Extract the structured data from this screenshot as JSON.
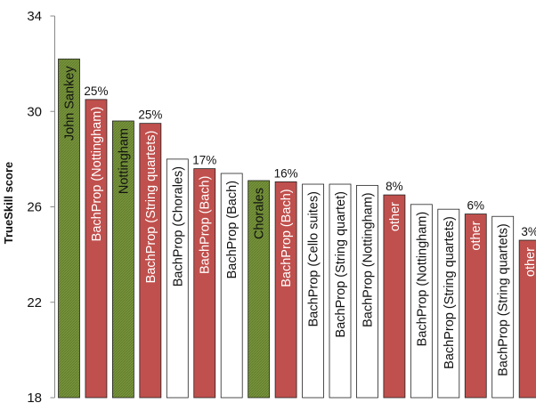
{
  "chart_data": {
    "type": "bar",
    "ylabel": "TrueSkill score",
    "ylim": [
      18,
      34
    ],
    "yticks": [
      18,
      22,
      26,
      30,
      34
    ],
    "grid": false,
    "legend": "none",
    "colors": {
      "green": "#77933c",
      "red": "#c0504d",
      "white": "#ffffff",
      "stroke": "#222222"
    },
    "bars": [
      {
        "label": "John Sankey",
        "value": 32.2,
        "color": "green",
        "pct": ""
      },
      {
        "label": "BachProp (Nottingham)",
        "value": 30.5,
        "color": "red",
        "pct": "25%"
      },
      {
        "label": "Nottingham",
        "value": 29.6,
        "color": "green",
        "pct": ""
      },
      {
        "label": "BachProp (String quartets)",
        "value": 29.5,
        "color": "red",
        "pct": "25%"
      },
      {
        "label": "BachProp (Chorales)",
        "value": 28.0,
        "color": "white",
        "pct": ""
      },
      {
        "label": "BachProp (Bach)",
        "value": 27.6,
        "color": "red",
        "pct": "17%"
      },
      {
        "label": "BachProp (Bach)",
        "value": 27.4,
        "color": "white",
        "pct": ""
      },
      {
        "label": "Chorales",
        "value": 27.1,
        "color": "green",
        "pct": ""
      },
      {
        "label": "BachProp (Bach)",
        "value": 27.05,
        "color": "red",
        "pct": "16%"
      },
      {
        "label": "BachProp (Cello suites)",
        "value": 26.95,
        "color": "white",
        "pct": ""
      },
      {
        "label": "BachProp (String quartet)",
        "value": 26.95,
        "color": "white",
        "pct": ""
      },
      {
        "label": "BachProp (Nottingham)",
        "value": 26.9,
        "color": "white",
        "pct": ""
      },
      {
        "label": "other",
        "value": 26.5,
        "color": "red",
        "pct": "8%"
      },
      {
        "label": "BachProp (Nottingham)",
        "value": 26.1,
        "color": "white",
        "pct": ""
      },
      {
        "label": "BachProp (String quartets)",
        "value": 25.9,
        "color": "white",
        "pct": ""
      },
      {
        "label": "other",
        "value": 25.7,
        "color": "red",
        "pct": "6%"
      },
      {
        "label": "BachProp (String quartets)",
        "value": 25.6,
        "color": "white",
        "pct": ""
      },
      {
        "label": "other",
        "value": 24.6,
        "color": "red",
        "pct": "3%"
      }
    ]
  }
}
